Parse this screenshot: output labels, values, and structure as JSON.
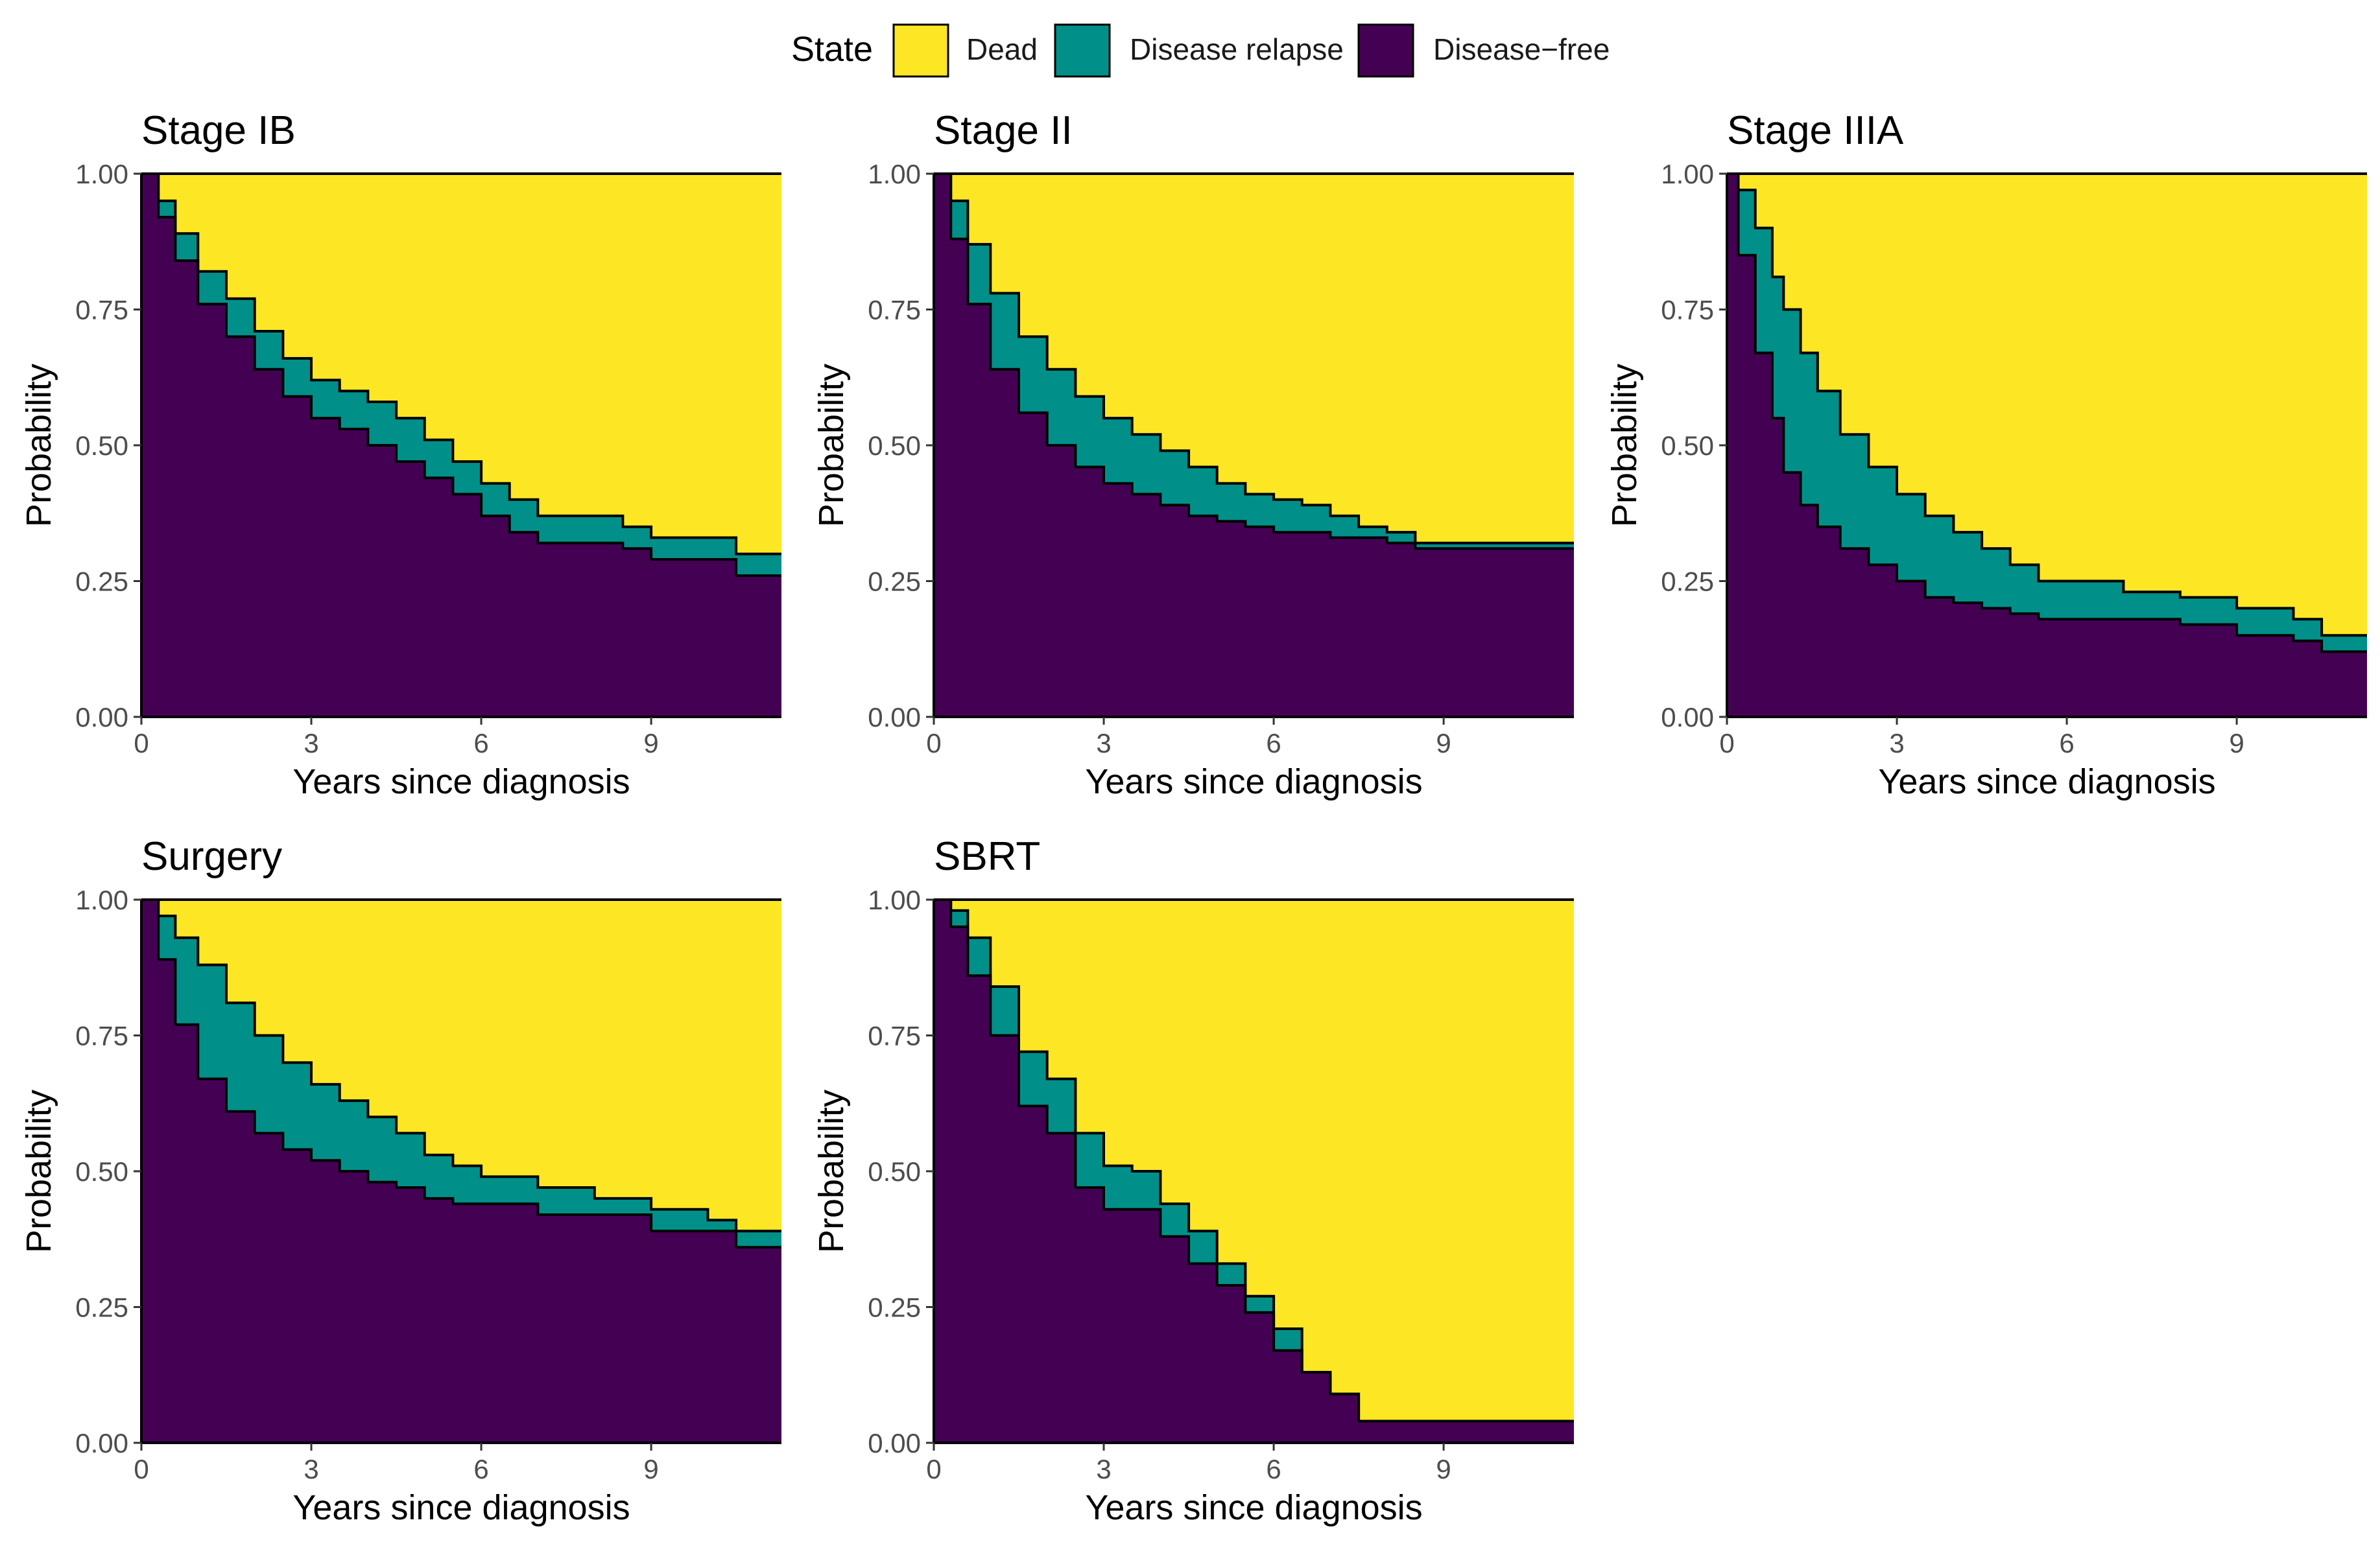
{
  "legend": {
    "title": "State",
    "items": [
      {
        "label": "Dead",
        "color": "#FDE725"
      },
      {
        "label": "Disease relapse",
        "color": "#009089"
      },
      {
        "label": "Disease−free",
        "color": "#440154"
      }
    ]
  },
  "chart_data": [
    {
      "type": "area",
      "title": "Stage IB",
      "xlabel": "Years since diagnosis",
      "ylabel": "Probability",
      "xlim": [
        0,
        11.3
      ],
      "ylim": [
        0,
        1
      ],
      "x_ticks": [
        0,
        3,
        6,
        9
      ],
      "y_ticks": [
        0,
        0.25,
        0.5,
        0.75,
        1
      ],
      "x_tick_labels": [
        "0",
        "3",
        "6",
        "9"
      ],
      "y_tick_labels": [
        "0.00",
        "0.25",
        "0.50",
        "0.75",
        "1.00"
      ],
      "series": [
        {
          "name": "Disease−free",
          "x": [
            0,
            0.3,
            0.6,
            1.0,
            1.5,
            2.0,
            2.5,
            3.0,
            3.5,
            4.0,
            4.5,
            5.0,
            5.5,
            6.0,
            6.5,
            7.0,
            8.0,
            8.5,
            9.0,
            10.0,
            10.5,
            11.3
          ],
          "values": [
            1.0,
            0.92,
            0.84,
            0.76,
            0.7,
            0.64,
            0.59,
            0.55,
            0.53,
            0.5,
            0.47,
            0.44,
            0.41,
            0.37,
            0.34,
            0.32,
            0.32,
            0.31,
            0.29,
            0.29,
            0.26,
            0.26
          ]
        },
        {
          "name": "Disease relapse",
          "x": [
            0,
            0.3,
            0.6,
            1.0,
            1.5,
            2.0,
            2.5,
            3.0,
            3.5,
            4.0,
            4.5,
            5.0,
            5.5,
            6.0,
            6.5,
            7.0,
            8.0,
            8.5,
            9.0,
            10.0,
            10.5,
            11.3
          ],
          "values": [
            1.0,
            0.95,
            0.89,
            0.82,
            0.77,
            0.71,
            0.66,
            0.62,
            0.6,
            0.58,
            0.55,
            0.51,
            0.47,
            0.43,
            0.4,
            0.37,
            0.37,
            0.35,
            0.33,
            0.33,
            0.3,
            0.3
          ]
        }
      ]
    },
    {
      "type": "area",
      "title": "Stage II",
      "xlabel": "Years since diagnosis",
      "ylabel": "Probability",
      "xlim": [
        0,
        11.3
      ],
      "ylim": [
        0,
        1
      ],
      "x_ticks": [
        0,
        3,
        6,
        9
      ],
      "y_ticks": [
        0,
        0.25,
        0.5,
        0.75,
        1
      ],
      "x_tick_labels": [
        "0",
        "3",
        "6",
        "9"
      ],
      "y_tick_labels": [
        "0.00",
        "0.25",
        "0.50",
        "0.75",
        "1.00"
      ],
      "series": [
        {
          "name": "Disease−free",
          "x": [
            0,
            0.3,
            0.6,
            1.0,
            1.5,
            2.0,
            2.5,
            3.0,
            3.5,
            4.0,
            4.5,
            5.0,
            5.5,
            6.0,
            6.5,
            7.0,
            7.5,
            8.0,
            8.5,
            9.0,
            10.0,
            11.3
          ],
          "values": [
            1.0,
            0.88,
            0.76,
            0.64,
            0.56,
            0.5,
            0.46,
            0.43,
            0.41,
            0.39,
            0.37,
            0.36,
            0.35,
            0.34,
            0.34,
            0.33,
            0.33,
            0.32,
            0.31,
            0.31,
            0.31,
            0.31
          ]
        },
        {
          "name": "Disease relapse",
          "x": [
            0,
            0.3,
            0.6,
            1.0,
            1.5,
            2.0,
            2.5,
            3.0,
            3.5,
            4.0,
            4.5,
            5.0,
            5.5,
            6.0,
            6.5,
            7.0,
            7.5,
            8.0,
            8.5,
            9.0,
            10.0,
            11.3
          ],
          "values": [
            1.0,
            0.95,
            0.87,
            0.78,
            0.7,
            0.64,
            0.59,
            0.55,
            0.52,
            0.49,
            0.46,
            0.43,
            0.41,
            0.4,
            0.39,
            0.37,
            0.35,
            0.34,
            0.32,
            0.32,
            0.32,
            0.32
          ]
        }
      ]
    },
    {
      "type": "area",
      "title": "Stage IIIA",
      "xlabel": "Years since diagnosis",
      "ylabel": "Probability",
      "xlim": [
        0,
        11.3
      ],
      "ylim": [
        0,
        1
      ],
      "x_ticks": [
        0,
        3,
        6,
        9
      ],
      "y_ticks": [
        0,
        0.25,
        0.5,
        0.75,
        1
      ],
      "x_tick_labels": [
        "0",
        "3",
        "6",
        "9"
      ],
      "y_tick_labels": [
        "0.00",
        "0.25",
        "0.50",
        "0.75",
        "1.00"
      ],
      "series": [
        {
          "name": "Disease−free",
          "x": [
            0,
            0.2,
            0.5,
            0.8,
            1.0,
            1.3,
            1.6,
            2.0,
            2.5,
            3.0,
            3.5,
            4.0,
            4.5,
            5.0,
            5.5,
            6.0,
            7.0,
            8.0,
            9.0,
            10.0,
            10.5,
            11.3
          ],
          "values": [
            1.0,
            0.85,
            0.67,
            0.55,
            0.45,
            0.39,
            0.35,
            0.31,
            0.28,
            0.25,
            0.22,
            0.21,
            0.2,
            0.19,
            0.18,
            0.18,
            0.18,
            0.17,
            0.15,
            0.14,
            0.12,
            0.12
          ]
        },
        {
          "name": "Disease relapse",
          "x": [
            0,
            0.2,
            0.5,
            0.8,
            1.0,
            1.3,
            1.6,
            2.0,
            2.5,
            3.0,
            3.5,
            4.0,
            4.5,
            5.0,
            5.5,
            6.0,
            7.0,
            8.0,
            9.0,
            10.0,
            10.5,
            11.3
          ],
          "values": [
            1.0,
            0.97,
            0.9,
            0.81,
            0.75,
            0.67,
            0.6,
            0.52,
            0.46,
            0.41,
            0.37,
            0.34,
            0.31,
            0.28,
            0.25,
            0.25,
            0.23,
            0.22,
            0.2,
            0.18,
            0.15,
            0.15
          ]
        }
      ]
    },
    {
      "type": "area",
      "title": "Surgery",
      "xlabel": "Years since diagnosis",
      "ylabel": "Probability",
      "xlim": [
        0,
        11.3
      ],
      "ylim": [
        0,
        1
      ],
      "x_ticks": [
        0,
        3,
        6,
        9
      ],
      "y_ticks": [
        0,
        0.25,
        0.5,
        0.75,
        1
      ],
      "x_tick_labels": [
        "0",
        "3",
        "6",
        "9"
      ],
      "y_tick_labels": [
        "0.00",
        "0.25",
        "0.50",
        "0.75",
        "1.00"
      ],
      "series": [
        {
          "name": "Disease−free",
          "x": [
            0,
            0.3,
            0.6,
            1.0,
            1.5,
            2.0,
            2.5,
            3.0,
            3.5,
            4.0,
            4.5,
            5.0,
            5.5,
            6.0,
            7.0,
            8.0,
            8.5,
            9.0,
            10.0,
            10.5,
            11.3
          ],
          "values": [
            1.0,
            0.89,
            0.77,
            0.67,
            0.61,
            0.57,
            0.54,
            0.52,
            0.5,
            0.48,
            0.47,
            0.45,
            0.44,
            0.44,
            0.42,
            0.42,
            0.42,
            0.39,
            0.39,
            0.36,
            0.36
          ]
        },
        {
          "name": "Disease relapse",
          "x": [
            0,
            0.3,
            0.6,
            1.0,
            1.5,
            2.0,
            2.5,
            3.0,
            3.5,
            4.0,
            4.5,
            5.0,
            5.5,
            6.0,
            7.0,
            8.0,
            8.5,
            9.0,
            10.0,
            10.5,
            11.3
          ],
          "values": [
            1.0,
            0.97,
            0.93,
            0.88,
            0.81,
            0.75,
            0.7,
            0.66,
            0.63,
            0.6,
            0.57,
            0.53,
            0.51,
            0.49,
            0.47,
            0.45,
            0.45,
            0.43,
            0.41,
            0.39,
            0.39
          ]
        }
      ]
    },
    {
      "type": "area",
      "title": "SBRT",
      "xlabel": "Years since diagnosis",
      "ylabel": "Probability",
      "xlim": [
        0,
        11.3
      ],
      "ylim": [
        0,
        1
      ],
      "x_ticks": [
        0,
        3,
        6,
        9
      ],
      "y_ticks": [
        0,
        0.25,
        0.5,
        0.75,
        1
      ],
      "x_tick_labels": [
        "0",
        "3",
        "6",
        "9"
      ],
      "y_tick_labels": [
        "0.00",
        "0.25",
        "0.50",
        "0.75",
        "1.00"
      ],
      "series": [
        {
          "name": "Disease−free",
          "x": [
            0,
            0.3,
            0.6,
            1.0,
            1.5,
            2.0,
            2.5,
            3.0,
            3.5,
            4.0,
            4.5,
            5.0,
            5.5,
            6.0,
            6.5,
            7.0,
            7.5,
            8.0,
            9.0,
            10.0,
            11.3
          ],
          "values": [
            1.0,
            0.95,
            0.86,
            0.75,
            0.62,
            0.57,
            0.47,
            0.43,
            0.43,
            0.38,
            0.33,
            0.29,
            0.24,
            0.17,
            0.13,
            0.09,
            0.04,
            0.04,
            0.04,
            0.04,
            0.04
          ]
        },
        {
          "name": "Disease relapse",
          "x": [
            0,
            0.3,
            0.6,
            1.0,
            1.5,
            2.0,
            2.5,
            3.0,
            3.5,
            4.0,
            4.5,
            5.0,
            5.5,
            6.0,
            6.5,
            7.0,
            7.5,
            8.0,
            9.0,
            10.0,
            11.3
          ],
          "values": [
            1.0,
            0.98,
            0.93,
            0.84,
            0.72,
            0.67,
            0.57,
            0.51,
            0.5,
            0.44,
            0.39,
            0.33,
            0.27,
            0.21,
            0.13,
            0.09,
            0.04,
            0.04,
            0.04,
            0.04,
            0.04
          ]
        }
      ]
    }
  ]
}
